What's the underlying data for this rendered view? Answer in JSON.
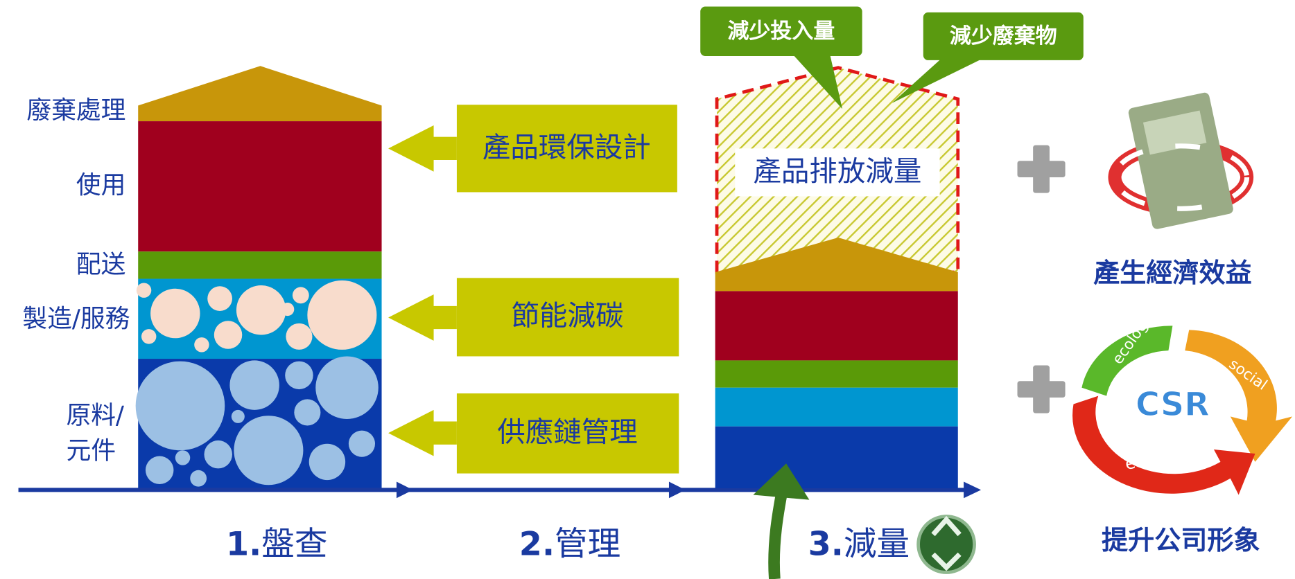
{
  "left_column": {
    "layers": [
      {
        "lines": [
          "廢棄處理"
        ]
      },
      {
        "lines": [
          "使用"
        ]
      },
      {
        "lines": [
          "配送"
        ]
      },
      {
        "lines": [
          "製造/服務"
        ]
      },
      {
        "lines": [
          "原料/",
          "元件"
        ]
      }
    ]
  },
  "actions": [
    "產品環保設計",
    "節能減碳",
    "供應鏈管理"
  ],
  "reduction": {
    "label": "產品排放減量",
    "callouts": [
      "減少投入量",
      "減少廢棄物"
    ]
  },
  "stages": [
    {
      "number": "1.",
      "name": "盤查"
    },
    {
      "number": "2.",
      "name": "管理"
    },
    {
      "number": "3.",
      "name": "減量"
    }
  ],
  "benefits": [
    {
      "label": "產生經濟效益"
    },
    {
      "label": "提升公司形象",
      "graphic": {
        "center": "CSR",
        "arcs": [
          "ecology",
          "social",
          "economy"
        ]
      }
    }
  ]
}
